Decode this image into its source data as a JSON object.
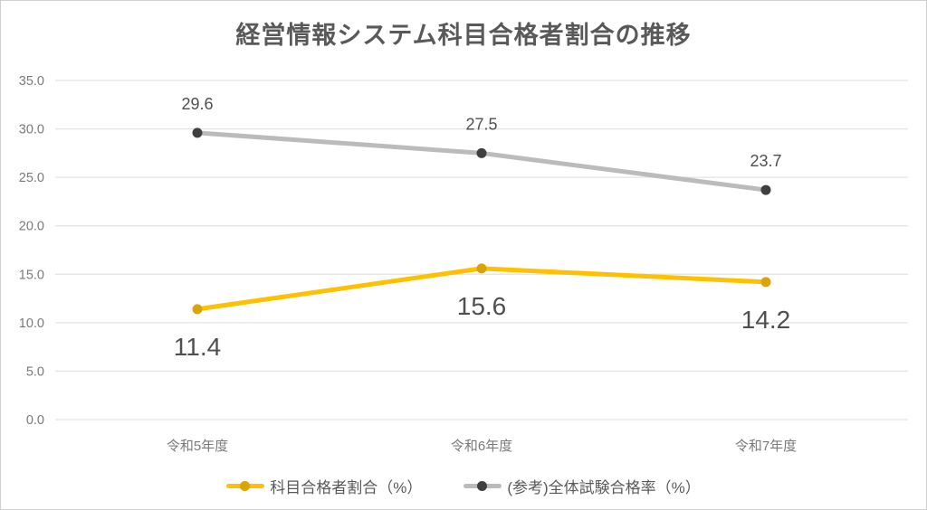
{
  "chart_data": {
    "type": "line",
    "title": "経営情報システム科目合格者割合の推移",
    "categories": [
      "令和5年度",
      "令和6年度",
      "令和7年度"
    ],
    "series": [
      {
        "name": "科目合格者割合（%）",
        "values": [
          11.4,
          15.6,
          14.2
        ],
        "line_color": "#FFC000",
        "marker_color": "#D9A404",
        "label_position": "below",
        "label_font_px": 28
      },
      {
        "name": "(参考)全体試験合格率（%）",
        "values": [
          29.6,
          27.5,
          23.7
        ],
        "line_color": "#BBBBBB",
        "marker_color": "#3F3F3F",
        "label_position": "above",
        "label_font_px": 18
      }
    ],
    "ylim": [
      0,
      35
    ],
    "ytick_step": 5,
    "ytick_labels": [
      "0.0",
      "5.0",
      "10.0",
      "15.0",
      "20.0",
      "25.0",
      "30.0",
      "35.0"
    ],
    "grid": true,
    "legend_position": "bottom",
    "colors": {
      "title_text": "#595959",
      "data_label_text": "#4f4f4f",
      "axis_text": "#7a7a7a",
      "gridline": "#e3e3e3",
      "background": "#ffffff"
    }
  }
}
